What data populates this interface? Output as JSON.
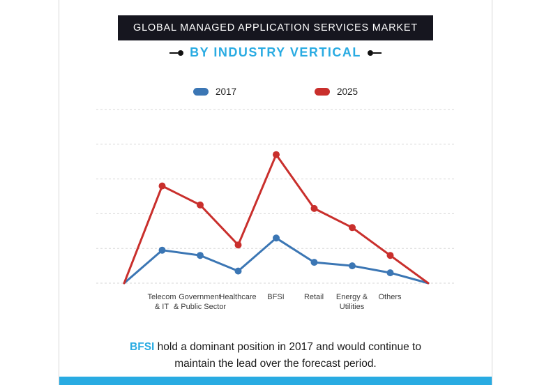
{
  "title": "GLOBAL MANAGED APPLICATION SERVICES MARKET",
  "subtitle": "BY INDUSTRY VERTICAL",
  "legend": [
    {
      "label": "2017",
      "color": "#3b76b4"
    },
    {
      "label": "2025",
      "color": "#c92f2c"
    }
  ],
  "chart_data": {
    "type": "line",
    "title": "Global Managed Application Services Market by Industry Vertical",
    "categories": [
      "Telecom & IT",
      "Government & Public Sector",
      "Healthcare",
      "BFSI",
      "Retail",
      "Energy & Utilities",
      "Others"
    ],
    "tick_labels": [
      "Telecom\n& IT",
      "Government\n& Public Sector",
      "Healthcare",
      "BFSI",
      "Retail",
      "Energy &\nUtilities",
      "Others"
    ],
    "series": [
      {
        "name": "2017",
        "color": "#3b76b4",
        "values": [
          19,
          16,
          7,
          26,
          12,
          10,
          6
        ]
      },
      {
        "name": "2025",
        "color": "#c92f2c",
        "values": [
          56,
          45,
          22,
          74,
          43,
          32,
          16
        ]
      }
    ],
    "edge_anchor_value": 0,
    "ylim": [
      0,
      100
    ],
    "xlabel": "",
    "ylabel": "",
    "grid": true,
    "gridline_count": 6,
    "legend_position": "top"
  },
  "caption": {
    "lead": "BFSI",
    "line1_rest": " hold a dominant position in 2017 and would continue to",
    "line2": "maintain the lead over the forecast period."
  },
  "colors": {
    "accent_blue": "#29abe2",
    "title_bg": "#16161f",
    "series_2017": "#3b76b4",
    "series_2025": "#c92f2c"
  }
}
